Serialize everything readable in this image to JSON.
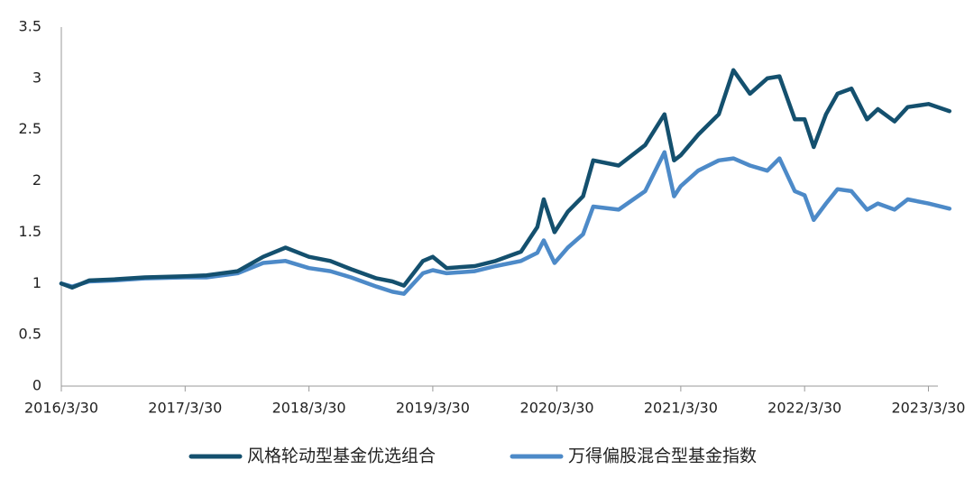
{
  "chart_data": {
    "type": "line",
    "title": "",
    "xlabel": "",
    "ylabel": "",
    "ylim": [
      0,
      3.5
    ],
    "yticks": [
      0,
      0.5,
      1,
      1.5,
      2,
      2.5,
      3,
      3.5
    ],
    "ytick_labels": [
      "0",
      "0.5",
      "1",
      "1.5",
      "2",
      "2.5",
      "3",
      "3.5"
    ],
    "xlim": [
      "2016/3/30",
      "2023/5/31"
    ],
    "xticks": [
      "2016/3/30",
      "2017/3/30",
      "2018/3/30",
      "2019/3/30",
      "2020/3/30",
      "2021/3/30",
      "2022/3/30",
      "2023/3/30"
    ],
    "xtick_labels": [
      "2016/3/30",
      "2017/3/30",
      "2018/3/30",
      "2019/3/30",
      "2020/3/30",
      "2021/3/30",
      "2022/3/30",
      "2023/3/30"
    ],
    "grid": false,
    "legend_position": "bottom",
    "colors": {
      "series1": "#14506e",
      "series2": "#4d8ac8",
      "axis": "#9a9a9a"
    },
    "series": [
      {
        "name": "风格轮动型基金优选组合",
        "x": [
          "2016/3/30",
          "2016/5/1",
          "2016/6/20",
          "2016/9/1",
          "2016/12/1",
          "2017/3/30",
          "2017/6/1",
          "2017/9/1",
          "2017/11/15",
          "2018/1/20",
          "2018/3/30",
          "2018/6/1",
          "2018/8/1",
          "2018/10/15",
          "2018/12/1",
          "2019/1/4",
          "2019/3/1",
          "2019/3/30",
          "2019/5/10",
          "2019/8/1",
          "2019/10/1",
          "2019/12/15",
          "2020/2/1",
          "2020/2/20",
          "2020/3/23",
          "2020/5/1",
          "2020/6/15",
          "2020/7/15",
          "2020/9/28",
          "2020/12/15",
          "2021/2/10",
          "2021/3/10",
          "2021/3/30",
          "2021/5/20",
          "2021/7/20",
          "2021/9/1",
          "2021/10/20",
          "2021/12/10",
          "2022/1/15",
          "2022/3/1",
          "2022/3/30",
          "2022/4/26",
          "2022/6/1",
          "2022/7/5",
          "2022/8/15",
          "2022/9/30",
          "2022/11/1",
          "2022/12/20",
          "2023/1/28",
          "2023/3/30",
          "2023/5/31"
        ],
        "y": [
          1.0,
          0.96,
          1.03,
          1.04,
          1.06,
          1.07,
          1.08,
          1.12,
          1.26,
          1.35,
          1.26,
          1.22,
          1.14,
          1.05,
          1.02,
          0.98,
          1.22,
          1.26,
          1.15,
          1.17,
          1.22,
          1.31,
          1.55,
          1.82,
          1.5,
          1.7,
          1.85,
          2.2,
          2.15,
          2.35,
          2.65,
          2.2,
          2.25,
          2.45,
          2.65,
          3.08,
          2.85,
          3.0,
          3.02,
          2.6,
          2.6,
          2.33,
          2.65,
          2.85,
          2.9,
          2.6,
          2.7,
          2.58,
          2.72,
          2.75,
          2.68
        ]
      },
      {
        "name": "万得偏股混合型基金指数",
        "x": [
          "2016/3/30",
          "2016/5/1",
          "2016/6/20",
          "2016/9/1",
          "2016/12/1",
          "2017/3/30",
          "2017/6/1",
          "2017/9/1",
          "2017/11/15",
          "2018/1/20",
          "2018/3/30",
          "2018/6/1",
          "2018/8/1",
          "2018/10/15",
          "2018/12/1",
          "2019/1/4",
          "2019/3/1",
          "2019/3/30",
          "2019/5/10",
          "2019/8/1",
          "2019/10/1",
          "2019/12/15",
          "2020/2/1",
          "2020/2/20",
          "2020/3/23",
          "2020/5/1",
          "2020/6/15",
          "2020/7/15",
          "2020/9/28",
          "2020/12/15",
          "2021/2/10",
          "2021/3/10",
          "2021/3/30",
          "2021/5/20",
          "2021/7/20",
          "2021/9/1",
          "2021/10/20",
          "2021/12/10",
          "2022/1/15",
          "2022/3/1",
          "2022/3/30",
          "2022/4/26",
          "2022/6/1",
          "2022/7/5",
          "2022/8/15",
          "2022/9/30",
          "2022/11/1",
          "2022/12/20",
          "2023/1/28",
          "2023/3/30",
          "2023/5/31"
        ],
        "y": [
          1.0,
          0.97,
          1.02,
          1.03,
          1.05,
          1.06,
          1.06,
          1.1,
          1.2,
          1.22,
          1.15,
          1.12,
          1.06,
          0.97,
          0.92,
          0.9,
          1.1,
          1.13,
          1.1,
          1.12,
          1.17,
          1.22,
          1.3,
          1.42,
          1.2,
          1.35,
          1.48,
          1.75,
          1.72,
          1.9,
          2.28,
          1.85,
          1.95,
          2.1,
          2.2,
          2.22,
          2.15,
          2.1,
          2.22,
          1.9,
          1.86,
          1.62,
          1.78,
          1.92,
          1.9,
          1.72,
          1.78,
          1.72,
          1.82,
          1.78,
          1.73
        ]
      }
    ]
  }
}
